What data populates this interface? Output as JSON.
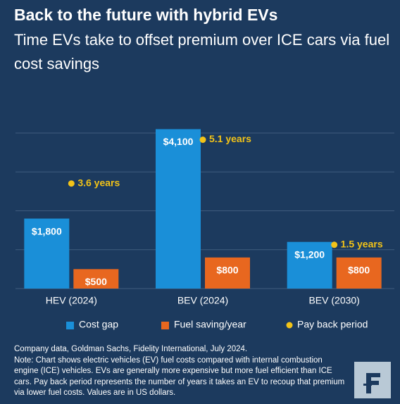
{
  "chart_data": {
    "type": "bar",
    "title": "Back to the future with hybrid EVs",
    "subtitle": "Time EVs take to offset premium over ICE cars via fuel cost savings",
    "categories": [
      "HEV (2024)",
      "BEV (2024)",
      "BEV (2030)"
    ],
    "series": [
      {
        "name": "Cost gap",
        "color": "#1a8fd8",
        "values": [
          1800,
          4100,
          1200
        ],
        "value_labels": [
          "$1,800",
          "$4,100",
          "$1,200"
        ]
      },
      {
        "name": "Fuel saving/year",
        "color": "#e8671f",
        "values": [
          500,
          800,
          800
        ],
        "value_labels": [
          "$500",
          "$800",
          "$800"
        ]
      },
      {
        "name": "Pay back period",
        "color": "#f2c318",
        "type": "scatter",
        "axis": "y2",
        "values": [
          3.6,
          5.1,
          1.5
        ],
        "value_labels": [
          "3.6 years",
          "5.1 years",
          "1.5 years"
        ]
      }
    ],
    "ylim": [
      0,
      4000
    ],
    "yticks": [
      0,
      1000,
      2000,
      3000,
      4000
    ],
    "grid": true,
    "y2lim": [
      0,
      5.33
    ],
    "source": "Company data, Goldman Sachs, Fidelity International, July 2024.",
    "note": "Note: Chart shows electric vehicles (EV) fuel costs compared with internal combustion engine (ICE) vehicles. EVs are generally more expensive but more fuel efficient than ICE cars. Pay back period represents the number of years it takes an EV to recoup that premium via lower fuel costs. Values are in US dollars."
  }
}
